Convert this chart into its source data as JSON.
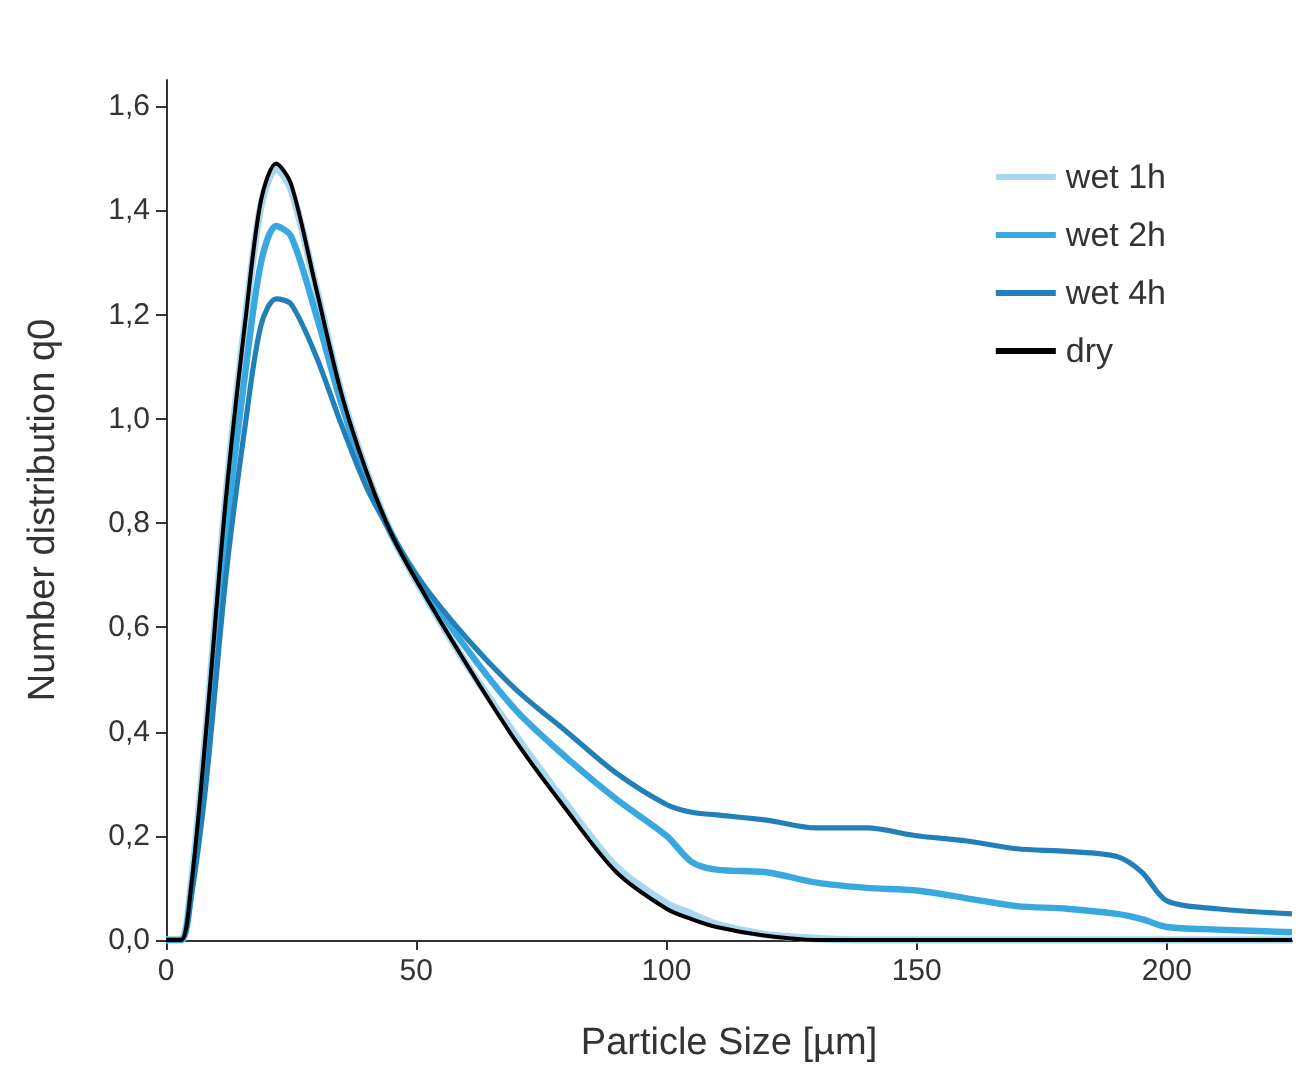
{
  "chart_data": {
    "type": "line",
    "xlabel": "Particle Size [µm]",
    "ylabel": "Number distribution q0",
    "xlim": [
      0,
      225
    ],
    "xticks": [
      0,
      50,
      100,
      150,
      200
    ],
    "ylim": [
      0,
      1.65
    ],
    "yticks": [
      {
        "value": 0,
        "label": "0,0"
      },
      {
        "value": 0.2,
        "label": "0,2"
      },
      {
        "value": 0.4,
        "label": "0,4"
      },
      {
        "value": 0.6,
        "label": "0,6"
      },
      {
        "value": 0.8,
        "label": "0,8"
      },
      {
        "value": 1.0,
        "label": "1,0"
      },
      {
        "value": 1.2,
        "label": "1,2"
      },
      {
        "value": 1.4,
        "label": "1,4"
      },
      {
        "value": 1.6,
        "label": "1,6"
      }
    ],
    "grid": false,
    "legend": "top right",
    "marker": "none",
    "line_style": "solid",
    "x": [
      0,
      3,
      5,
      8,
      12,
      16,
      19,
      22,
      25,
      30,
      35,
      40,
      45,
      50,
      60,
      70,
      80,
      90,
      100,
      105,
      110,
      120,
      130,
      140,
      150,
      160,
      170,
      180,
      190,
      195,
      200,
      210,
      225
    ],
    "series": [
      {
        "name": "wet 1h",
        "color": "#a8d8f0",
        "values": [
          0,
          0,
          0.1,
          0.4,
          0.85,
          1.2,
          1.41,
          1.48,
          1.44,
          1.25,
          1.05,
          0.9,
          0.78,
          0.69,
          0.53,
          0.39,
          0.26,
          0.14,
          0.07,
          0.05,
          0.03,
          0.01,
          0.003,
          0,
          0,
          0,
          0,
          0,
          0,
          0,
          0,
          0,
          0
        ]
      },
      {
        "name": "wet 2h",
        "color": "#3aa8e0",
        "values": [
          0,
          0,
          0.09,
          0.35,
          0.78,
          1.1,
          1.3,
          1.37,
          1.35,
          1.2,
          1.03,
          0.89,
          0.78,
          0.7,
          0.56,
          0.44,
          0.35,
          0.27,
          0.2,
          0.15,
          0.135,
          0.13,
          0.11,
          0.1,
          0.095,
          0.08,
          0.065,
          0.06,
          0.05,
          0.04,
          0.025,
          0.02,
          0.015
        ]
      },
      {
        "name": "wet 4h",
        "color": "#2180b8",
        "values": [
          0,
          0,
          0.08,
          0.3,
          0.7,
          1.0,
          1.18,
          1.23,
          1.22,
          1.12,
          0.99,
          0.87,
          0.78,
          0.7,
          0.58,
          0.48,
          0.4,
          0.32,
          0.26,
          0.245,
          0.24,
          0.23,
          0.215,
          0.215,
          0.2,
          0.19,
          0.175,
          0.17,
          0.16,
          0.13,
          0.075,
          0.06,
          0.05
        ]
      },
      {
        "name": "dry",
        "color": "#000000",
        "values": [
          0,
          0,
          0.1,
          0.4,
          0.85,
          1.2,
          1.42,
          1.49,
          1.45,
          1.25,
          1.05,
          0.9,
          0.78,
          0.69,
          0.53,
          0.38,
          0.25,
          0.13,
          0.06,
          0.04,
          0.025,
          0.008,
          0,
          0,
          0,
          0,
          0,
          0,
          0,
          0,
          0,
          0,
          0
        ]
      }
    ]
  }
}
